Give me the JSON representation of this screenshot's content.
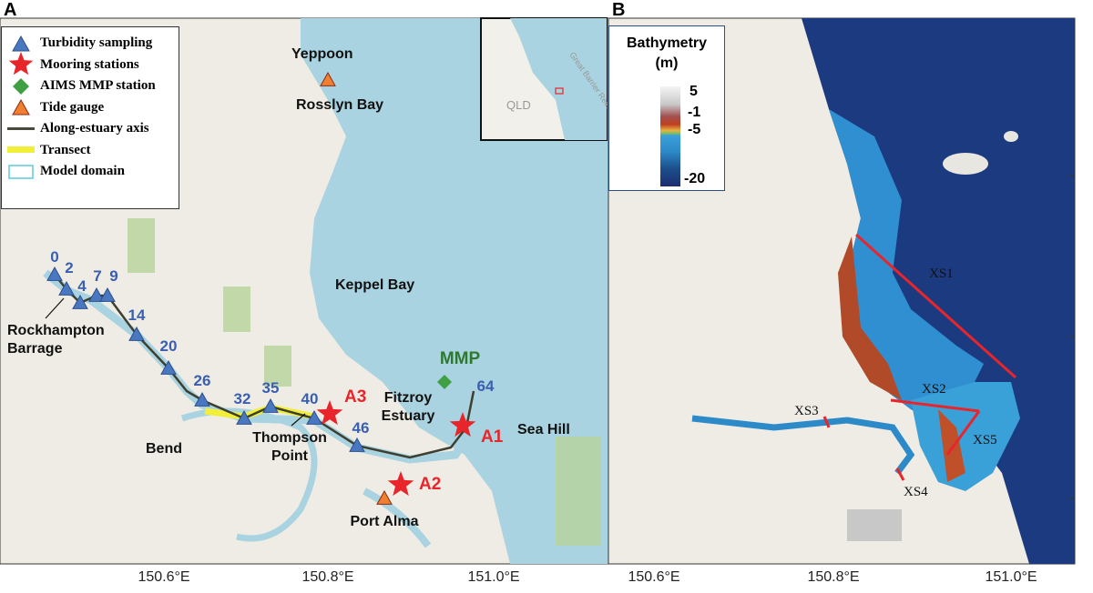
{
  "panels": {
    "a": "A",
    "b": "B"
  },
  "legend": [
    {
      "label": "Turbidity sampling",
      "symbol": "triangle",
      "color": "#4a78c0"
    },
    {
      "label": "Mooring stations",
      "symbol": "star",
      "color": "#e8252a"
    },
    {
      "label": "AIMS MMP station",
      "symbol": "diamond",
      "color": "#3ea043"
    },
    {
      "label": "Tide gauge",
      "symbol": "triangle",
      "color": "#f08030"
    },
    {
      "label": "Along-estuary axis",
      "symbol": "line",
      "color": "#4a4a3a"
    },
    {
      "label": "Transect",
      "symbol": "band",
      "color": "#f2ef3a"
    },
    {
      "label": "Model domain",
      "symbol": "box",
      "color": "#5fc8e0"
    }
  ],
  "stations": [
    "0",
    "2",
    "4",
    "7",
    "9",
    "14",
    "20",
    "26",
    "32",
    "35",
    "40",
    "46",
    "64"
  ],
  "moorings": [
    "A1",
    "A2",
    "A3"
  ],
  "mmp": "MMP",
  "places": {
    "yeppoon": "Yeppoon",
    "rosslyn": "Rosslyn Bay",
    "keppel": "Keppel Bay",
    "fitzroy1": "Fitzroy",
    "fitzroy2": "Estuary",
    "seahill": "Sea Hill",
    "rock1": "Rockhampton",
    "rock2": "Barrage",
    "bend": "Bend",
    "thompson1": "Thompson",
    "thompson2": "Point",
    "portalma": "Port Alma"
  },
  "inset": {
    "region": "QLD",
    "reef": "Great Barrier Reef"
  },
  "colorbar": {
    "title1": "Bathymetry",
    "title2": "(m)",
    "ticks": [
      "5",
      "-1",
      "-5",
      "-20"
    ]
  },
  "transects": [
    "XS1",
    "XS2",
    "XS3",
    "XS4",
    "XS5"
  ],
  "x_ticks_a": [
    "150.6°E",
    "150.8°E",
    "151.0°E"
  ],
  "x_ticks_b": [
    "150.6°E",
    "150.8°E",
    "151.0°E"
  ],
  "colors": {
    "water": "#a9d3e0",
    "land": "#eeece4",
    "park": "#b6d39a",
    "deep": "#1a2d6e",
    "transect": "#e8252a"
  }
}
